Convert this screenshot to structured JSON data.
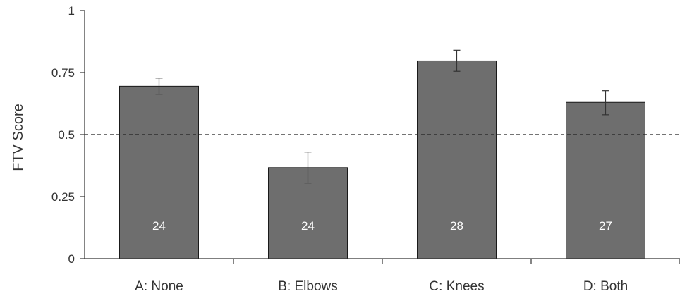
{
  "chart_data": {
    "type": "bar",
    "title": "",
    "xlabel": "",
    "ylabel": "FTV Score",
    "ylim": [
      0,
      1
    ],
    "yticks": [
      0,
      0.25,
      0.5,
      0.75,
      1
    ],
    "ytick_labels": [
      "0",
      "0.25",
      "0.5",
      "0.75",
      "1"
    ],
    "categories": [
      "A: None",
      "B: Elbows",
      "C: Knees",
      "D: Both"
    ],
    "values": [
      0.695,
      0.367,
      0.797,
      0.63
    ],
    "error_low": [
      0.663,
      0.305,
      0.755,
      0.58
    ],
    "error_high": [
      0.728,
      0.43,
      0.84,
      0.677
    ],
    "bar_labels": [
      "24",
      "24",
      "28",
      "27"
    ],
    "reference_line": 0.5,
    "grid": false,
    "legend": "none",
    "colors": {
      "bar_fill": "#6e6e6e",
      "bar_edge": "#1a1a1a",
      "axis": "#333333",
      "reference_line": "#222222",
      "error_bar": "#333333",
      "bar_label": "#ffffff"
    }
  }
}
